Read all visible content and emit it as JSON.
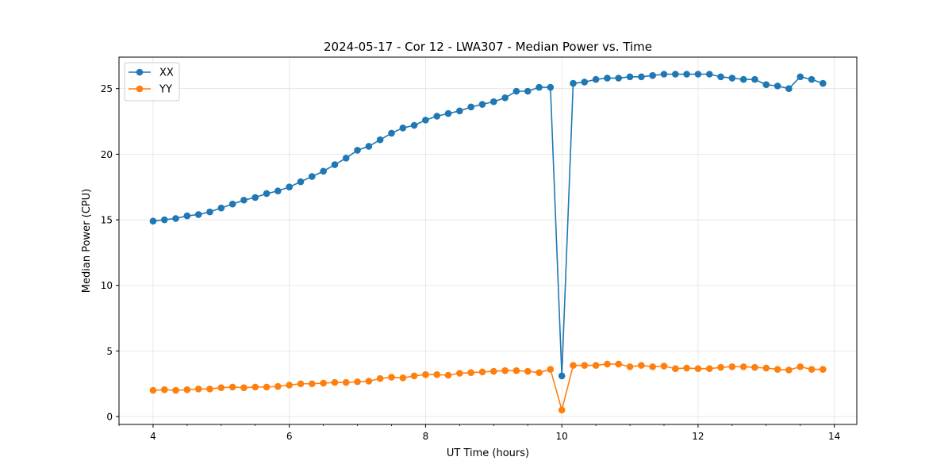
{
  "chart_data": {
    "type": "line",
    "title": "2024-05-17 - Cor 12 - LWA307 - Median Power vs. Time",
    "xlabel": "UT Time (hours)",
    "ylabel": "Median Power (CPU)",
    "xlim": [
      3.5,
      14.33
    ],
    "ylim": [
      -0.6,
      27.4
    ],
    "xticks": [
      4,
      6,
      8,
      10,
      12,
      14
    ],
    "xtick_labels": [
      "4",
      "6",
      "8",
      "10",
      "12",
      "14"
    ],
    "yticks": [
      0,
      5,
      10,
      15,
      20,
      25
    ],
    "ytick_labels": [
      "0",
      "5",
      "10",
      "15",
      "20",
      "25"
    ],
    "grid": true,
    "legend_position": "top-left",
    "series": [
      {
        "name": "XX",
        "color": "#1f77b4",
        "x": [
          4.0,
          4.167,
          4.333,
          4.5,
          4.667,
          4.833,
          5.0,
          5.167,
          5.333,
          5.5,
          5.667,
          5.833,
          6.0,
          6.167,
          6.333,
          6.5,
          6.667,
          6.833,
          7.0,
          7.167,
          7.333,
          7.5,
          7.667,
          7.833,
          8.0,
          8.167,
          8.333,
          8.5,
          8.667,
          8.833,
          9.0,
          9.167,
          9.333,
          9.5,
          9.667,
          9.833,
          10.0,
          10.167,
          10.333,
          10.5,
          10.667,
          10.833,
          11.0,
          11.167,
          11.333,
          11.5,
          11.667,
          11.833,
          12.0,
          12.167,
          12.333,
          12.5,
          12.667,
          12.833,
          13.0,
          13.167,
          13.333,
          13.5,
          13.667,
          13.833
        ],
        "values": [
          14.9,
          15.0,
          15.1,
          15.3,
          15.4,
          15.6,
          15.9,
          16.2,
          16.5,
          16.7,
          17.0,
          17.2,
          17.5,
          17.9,
          18.3,
          18.7,
          19.2,
          19.7,
          20.3,
          20.6,
          21.1,
          21.6,
          22.0,
          22.2,
          22.6,
          22.9,
          23.1,
          23.3,
          23.6,
          23.8,
          24.0,
          24.3,
          24.8,
          24.8,
          25.1,
          25.1,
          3.1,
          25.4,
          25.5,
          25.7,
          25.8,
          25.8,
          25.9,
          25.9,
          26.0,
          26.1,
          26.1,
          26.1,
          26.1,
          26.1,
          25.9,
          25.8,
          25.7,
          25.7,
          25.3,
          25.2,
          25.0,
          25.9,
          25.7,
          25.4
        ]
      },
      {
        "name": "YY",
        "color": "#ff7f0e",
        "x": [
          4.0,
          4.167,
          4.333,
          4.5,
          4.667,
          4.833,
          5.0,
          5.167,
          5.333,
          5.5,
          5.667,
          5.833,
          6.0,
          6.167,
          6.333,
          6.5,
          6.667,
          6.833,
          7.0,
          7.167,
          7.333,
          7.5,
          7.667,
          7.833,
          8.0,
          8.167,
          8.333,
          8.5,
          8.667,
          8.833,
          9.0,
          9.167,
          9.333,
          9.5,
          9.667,
          9.833,
          10.0,
          10.167,
          10.333,
          10.5,
          10.667,
          10.833,
          11.0,
          11.167,
          11.333,
          11.5,
          11.667,
          11.833,
          12.0,
          12.167,
          12.333,
          12.5,
          12.667,
          12.833,
          13.0,
          13.167,
          13.333,
          13.5,
          13.667,
          13.833
        ],
        "values": [
          2.0,
          2.05,
          2.0,
          2.05,
          2.1,
          2.1,
          2.2,
          2.25,
          2.2,
          2.25,
          2.25,
          2.3,
          2.4,
          2.5,
          2.5,
          2.55,
          2.6,
          2.6,
          2.65,
          2.7,
          2.9,
          3.0,
          2.95,
          3.1,
          3.2,
          3.2,
          3.15,
          3.3,
          3.35,
          3.4,
          3.45,
          3.5,
          3.5,
          3.45,
          3.35,
          3.6,
          0.5,
          3.9,
          3.9,
          3.9,
          4.0,
          4.0,
          3.8,
          3.9,
          3.8,
          3.85,
          3.65,
          3.7,
          3.65,
          3.65,
          3.75,
          3.8,
          3.8,
          3.75,
          3.7,
          3.6,
          3.55,
          3.8,
          3.6,
          3.6
        ]
      }
    ]
  }
}
